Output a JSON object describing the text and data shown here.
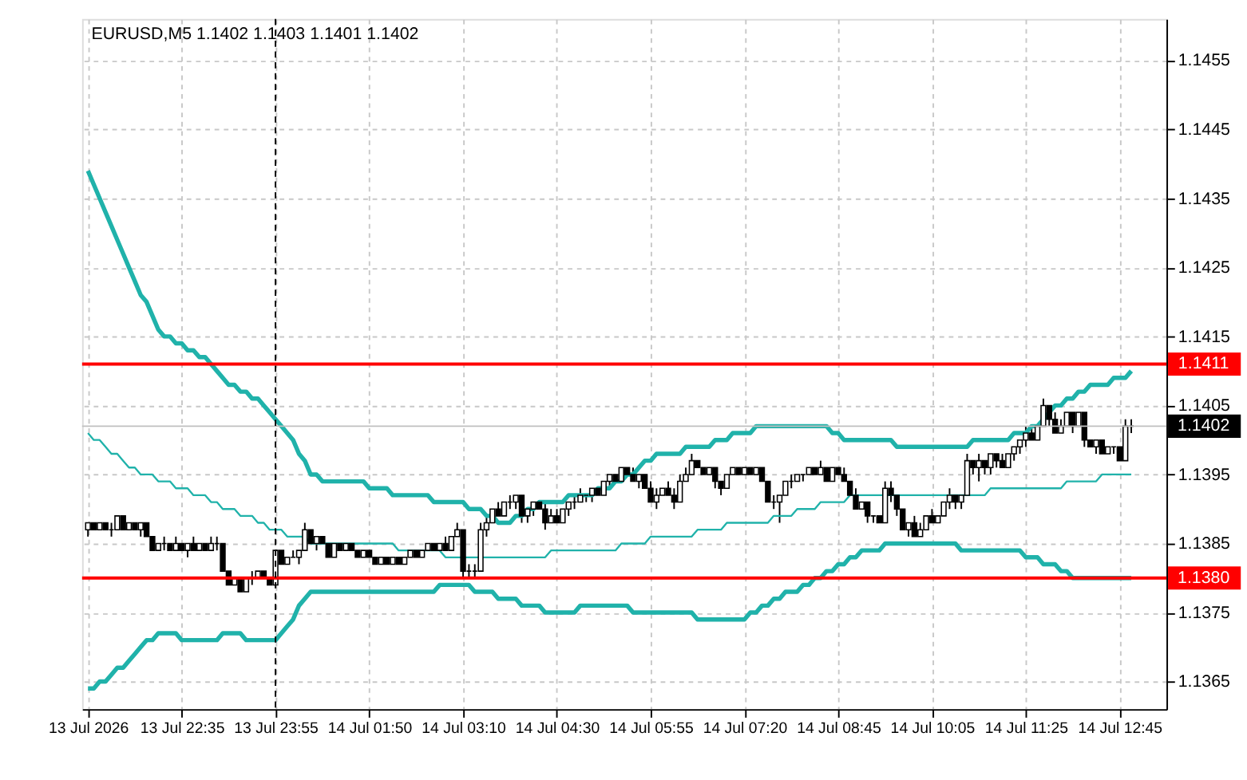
{
  "chart_data": {
    "type": "candlestick",
    "title": "EURUSD,M5  1.1402 1.1403 1.1401 1.1402",
    "categories": [
      "13 Jul 2026",
      null,
      null,
      null,
      null,
      null,
      null,
      null,
      null,
      null,
      null,
      null,
      null,
      null,
      null,
      null,
      "13 Jul 22:35",
      null,
      null,
      null,
      null,
      null,
      null,
      null,
      null,
      null,
      null,
      null,
      null,
      null,
      null,
      null,
      "13 Jul 23:55",
      null,
      null,
      null,
      null,
      null,
      null,
      null,
      null,
      null,
      null,
      null,
      null,
      null,
      null,
      null,
      "14 Jul 01:50",
      null,
      null,
      null,
      null,
      null,
      null,
      null,
      null,
      null,
      null,
      null,
      null,
      null,
      null,
      null,
      "14 Jul 03:10",
      null,
      null,
      null,
      null,
      null,
      null,
      null,
      null,
      null,
      null,
      null,
      null,
      null,
      null,
      null,
      "14 Jul 04:30",
      null,
      null,
      null,
      null,
      null,
      null,
      null,
      null,
      null,
      null,
      null,
      null,
      null,
      null,
      null,
      "14 Jul 05:55",
      null,
      null,
      null,
      null,
      null,
      null,
      null,
      null,
      null,
      null,
      null,
      null,
      null,
      null,
      null,
      "14 Jul 07:20",
      null,
      null,
      null,
      null,
      null,
      null,
      null,
      null,
      null,
      null,
      null,
      null,
      null,
      null,
      null,
      "14 Jul 08:45",
      null,
      null,
      null,
      null,
      null,
      null,
      null,
      null,
      null,
      null,
      null,
      null,
      null,
      null,
      null,
      "14 Jul 10:05",
      null,
      null,
      null,
      null,
      null,
      null,
      null,
      null,
      null,
      null,
      null,
      null,
      null,
      null,
      null,
      "14 Jul 11:25",
      null,
      null,
      null,
      null,
      null,
      null,
      null,
      null,
      null,
      null,
      null,
      null,
      null,
      null,
      null,
      "14 Jul 12:45",
      null,
      null
    ],
    "ohlc": [
      [
        1.1387,
        1.1388,
        1.1386,
        1.1388
      ],
      [
        1.1388,
        1.1388,
        1.1387,
        1.1387
      ],
      [
        1.1387,
        1.1388,
        1.1387,
        1.1388
      ],
      [
        1.1388,
        1.1388,
        1.1387,
        1.1387
      ],
      [
        1.1387,
        1.1388,
        1.1386,
        1.1387
      ],
      [
        1.1387,
        1.1389,
        1.1387,
        1.1389
      ],
      [
        1.1389,
        1.1389,
        1.1387,
        1.1387
      ],
      [
        1.1387,
        1.1388,
        1.1387,
        1.1388
      ],
      [
        1.1388,
        1.1388,
        1.1387,
        1.1387
      ],
      [
        1.1387,
        1.1388,
        1.1386,
        1.1388
      ],
      [
        1.1388,
        1.1388,
        1.1386,
        1.1386
      ],
      [
        1.1386,
        1.1386,
        1.1384,
        1.1384
      ],
      [
        1.1384,
        1.1385,
        1.1384,
        1.1385
      ],
      [
        1.1385,
        1.1386,
        1.1384,
        1.1385
      ],
      [
        1.1385,
        1.1385,
        1.1384,
        1.1384
      ],
      [
        1.1384,
        1.1386,
        1.1384,
        1.1385
      ],
      [
        1.1385,
        1.1385,
        1.1384,
        1.1384
      ],
      [
        1.1384,
        1.1385,
        1.1383,
        1.1385
      ],
      [
        1.1385,
        1.1386,
        1.1384,
        1.1384
      ],
      [
        1.1384,
        1.1385,
        1.1384,
        1.1385
      ],
      [
        1.1385,
        1.1385,
        1.1384,
        1.1384
      ],
      [
        1.1384,
        1.1386,
        1.1384,
        1.1385
      ],
      [
        1.1385,
        1.1386,
        1.1384,
        1.1385
      ],
      [
        1.1385,
        1.1385,
        1.1381,
        1.1381
      ],
      [
        1.1381,
        1.1381,
        1.1379,
        1.1379
      ],
      [
        1.1379,
        1.138,
        1.1379,
        1.138
      ],
      [
        1.138,
        1.138,
        1.1378,
        1.1378
      ],
      [
        1.1378,
        1.138,
        1.1378,
        1.138
      ],
      [
        1.138,
        1.1381,
        1.1379,
        1.138
      ],
      [
        1.138,
        1.1381,
        1.138,
        1.1381
      ],
      [
        1.1381,
        1.1381,
        1.138,
        1.138
      ],
      [
        1.138,
        1.138,
        1.1379,
        1.1379
      ],
      [
        1.1379,
        1.1384,
        1.1379,
        1.1384
      ],
      [
        1.1384,
        1.1384,
        1.1382,
        1.1382
      ],
      [
        1.1382,
        1.1383,
        1.1382,
        1.1383
      ],
      [
        1.1383,
        1.1384,
        1.1383,
        1.1383
      ],
      [
        1.1383,
        1.1384,
        1.1382,
        1.1384
      ],
      [
        1.1384,
        1.1388,
        1.1384,
        1.1387
      ],
      [
        1.1387,
        1.1387,
        1.1385,
        1.1385
      ],
      [
        1.1385,
        1.1386,
        1.1384,
        1.1386
      ],
      [
        1.1386,
        1.1386,
        1.1385,
        1.1385
      ],
      [
        1.1385,
        1.1385,
        1.1383,
        1.1383
      ],
      [
        1.1383,
        1.1385,
        1.1383,
        1.1385
      ],
      [
        1.1385,
        1.1385,
        1.1384,
        1.1384
      ],
      [
        1.1384,
        1.1385,
        1.1384,
        1.1385
      ],
      [
        1.1385,
        1.1385,
        1.1384,
        1.1384
      ],
      [
        1.1384,
        1.1384,
        1.1383,
        1.1383
      ],
      [
        1.1383,
        1.1384,
        1.1383,
        1.1384
      ],
      [
        1.1384,
        1.1384,
        1.1383,
        1.1383
      ],
      [
        1.1383,
        1.1383,
        1.1382,
        1.1382
      ],
      [
        1.1382,
        1.1383,
        1.1382,
        1.1383
      ],
      [
        1.1383,
        1.1383,
        1.1382,
        1.1382
      ],
      [
        1.1382,
        1.1383,
        1.1382,
        1.1383
      ],
      [
        1.1383,
        1.1383,
        1.1382,
        1.1382
      ],
      [
        1.1382,
        1.1383,
        1.1382,
        1.1383
      ],
      [
        1.1383,
        1.1384,
        1.1383,
        1.1384
      ],
      [
        1.1384,
        1.1384,
        1.1383,
        1.1383
      ],
      [
        1.1383,
        1.1384,
        1.1383,
        1.1384
      ],
      [
        1.1384,
        1.1385,
        1.1384,
        1.1385
      ],
      [
        1.1385,
        1.1385,
        1.1384,
        1.1384
      ],
      [
        1.1384,
        1.1385,
        1.1384,
        1.1385
      ],
      [
        1.1385,
        1.1386,
        1.1384,
        1.1384
      ],
      [
        1.1384,
        1.1386,
        1.1384,
        1.1386
      ],
      [
        1.1386,
        1.1388,
        1.1386,
        1.1387
      ],
      [
        1.1387,
        1.1387,
        1.138,
        1.1381
      ],
      [
        1.1381,
        1.1382,
        1.138,
        1.1381
      ],
      [
        1.1381,
        1.1382,
        1.138,
        1.1381
      ],
      [
        1.1381,
        1.1388,
        1.1381,
        1.1387
      ],
      [
        1.1387,
        1.1389,
        1.1386,
        1.1388
      ],
      [
        1.1388,
        1.139,
        1.1388,
        1.139
      ],
      [
        1.139,
        1.1391,
        1.1389,
        1.1389
      ],
      [
        1.1389,
        1.1391,
        1.1389,
        1.1391
      ],
      [
        1.1391,
        1.1392,
        1.139,
        1.1391
      ],
      [
        1.1391,
        1.1392,
        1.139,
        1.1392
      ],
      [
        1.1392,
        1.1392,
        1.1388,
        1.1389
      ],
      [
        1.1389,
        1.139,
        1.1388,
        1.139
      ],
      [
        1.139,
        1.1391,
        1.1389,
        1.1391
      ],
      [
        1.1391,
        1.1391,
        1.139,
        1.139
      ],
      [
        1.139,
        1.1391,
        1.1387,
        1.1388
      ],
      [
        1.1388,
        1.139,
        1.1388,
        1.1389
      ],
      [
        1.1389,
        1.139,
        1.1388,
        1.1388
      ],
      [
        1.1388,
        1.139,
        1.1388,
        1.139
      ],
      [
        1.139,
        1.1391,
        1.1389,
        1.1391
      ],
      [
        1.1391,
        1.1392,
        1.139,
        1.1391
      ],
      [
        1.1391,
        1.1393,
        1.1391,
        1.1392
      ],
      [
        1.1392,
        1.1392,
        1.1391,
        1.1392
      ],
      [
        1.1392,
        1.1393,
        1.1391,
        1.1393
      ],
      [
        1.1393,
        1.1393,
        1.1392,
        1.1392
      ],
      [
        1.1392,
        1.1394,
        1.1392,
        1.1394
      ],
      [
        1.1394,
        1.1395,
        1.1393,
        1.1395
      ],
      [
        1.1395,
        1.1395,
        1.1394,
        1.1394
      ],
      [
        1.1394,
        1.1396,
        1.1394,
        1.1396
      ],
      [
        1.1396,
        1.1396,
        1.1395,
        1.1395
      ],
      [
        1.1395,
        1.1396,
        1.1394,
        1.1394
      ],
      [
        1.1394,
        1.1395,
        1.1393,
        1.1395
      ],
      [
        1.1395,
        1.1395,
        1.1393,
        1.1393
      ],
      [
        1.1393,
        1.1394,
        1.1391,
        1.1391
      ],
      [
        1.1391,
        1.1393,
        1.139,
        1.1392
      ],
      [
        1.1392,
        1.1393,
        1.1392,
        1.1393
      ],
      [
        1.1393,
        1.1394,
        1.1392,
        1.1392
      ],
      [
        1.1392,
        1.1393,
        1.139,
        1.1391
      ],
      [
        1.1391,
        1.1395,
        1.1391,
        1.1394
      ],
      [
        1.1394,
        1.1396,
        1.1394,
        1.1395
      ],
      [
        1.1395,
        1.1398,
        1.1395,
        1.1397
      ],
      [
        1.1397,
        1.1397,
        1.1396,
        1.1396
      ],
      [
        1.1396,
        1.1396,
        1.1395,
        1.1395
      ],
      [
        1.1395,
        1.1396,
        1.1395,
        1.1396
      ],
      [
        1.1396,
        1.1396,
        1.1393,
        1.1394
      ],
      [
        1.1394,
        1.1394,
        1.1392,
        1.1393
      ],
      [
        1.1393,
        1.1395,
        1.1393,
        1.1395
      ],
      [
        1.1395,
        1.1396,
        1.1395,
        1.1396
      ],
      [
        1.1396,
        1.1396,
        1.1395,
        1.1395
      ],
      [
        1.1395,
        1.1396,
        1.1395,
        1.1396
      ],
      [
        1.1396,
        1.1396,
        1.1395,
        1.1395
      ],
      [
        1.1395,
        1.1396,
        1.1395,
        1.1396
      ],
      [
        1.1396,
        1.1396,
        1.1394,
        1.1394
      ],
      [
        1.1394,
        1.1394,
        1.1391,
        1.1391
      ],
      [
        1.1391,
        1.1392,
        1.139,
        1.1391
      ],
      [
        1.1391,
        1.1392,
        1.1388,
        1.1392
      ],
      [
        1.1392,
        1.1394,
        1.1392,
        1.1394
      ],
      [
        1.1394,
        1.1395,
        1.1393,
        1.1394
      ],
      [
        1.1394,
        1.1395,
        1.1394,
        1.1395
      ],
      [
        1.1395,
        1.1395,
        1.1394,
        1.1395
      ],
      [
        1.1395,
        1.1396,
        1.1395,
        1.1396
      ],
      [
        1.1396,
        1.1396,
        1.1395,
        1.1395
      ],
      [
        1.1395,
        1.1397,
        1.1395,
        1.1396
      ],
      [
        1.1396,
        1.1396,
        1.1394,
        1.1394
      ],
      [
        1.1394,
        1.1396,
        1.1394,
        1.1396
      ],
      [
        1.1396,
        1.1396,
        1.1395,
        1.1395
      ],
      [
        1.1395,
        1.1396,
        1.1394,
        1.1394
      ],
      [
        1.1394,
        1.1394,
        1.1392,
        1.1392
      ],
      [
        1.1392,
        1.1393,
        1.139,
        1.139
      ],
      [
        1.139,
        1.1391,
        1.139,
        1.1391
      ],
      [
        1.1391,
        1.1391,
        1.1388,
        1.1389
      ],
      [
        1.1389,
        1.1389,
        1.1388,
        1.1389
      ],
      [
        1.1389,
        1.1389,
        1.1388,
        1.1388
      ],
      [
        1.1388,
        1.1394,
        1.1388,
        1.1393
      ],
      [
        1.1393,
        1.1394,
        1.1391,
        1.1392
      ],
      [
        1.1392,
        1.1392,
        1.1389,
        1.139
      ],
      [
        1.139,
        1.139,
        1.1387,
        1.1387
      ],
      [
        1.1387,
        1.1388,
        1.1386,
        1.1388
      ],
      [
        1.1388,
        1.1389,
        1.1386,
        1.1386
      ],
      [
        1.1386,
        1.1388,
        1.1386,
        1.1387
      ],
      [
        1.1387,
        1.1389,
        1.1387,
        1.1389
      ],
      [
        1.1389,
        1.139,
        1.1388,
        1.1388
      ],
      [
        1.1388,
        1.1389,
        1.1388,
        1.1389
      ],
      [
        1.1389,
        1.1391,
        1.1389,
        1.1391
      ],
      [
        1.1391,
        1.1393,
        1.139,
        1.1392
      ],
      [
        1.1392,
        1.1392,
        1.139,
        1.1391
      ],
      [
        1.1391,
        1.1392,
        1.139,
        1.1392
      ],
      [
        1.1392,
        1.1398,
        1.1392,
        1.1397
      ],
      [
        1.1397,
        1.1397,
        1.1395,
        1.1396
      ],
      [
        1.1396,
        1.1398,
        1.1394,
        1.1397
      ],
      [
        1.1397,
        1.1397,
        1.1395,
        1.1396
      ],
      [
        1.1396,
        1.1398,
        1.1395,
        1.1398
      ],
      [
        1.1398,
        1.1398,
        1.1396,
        1.1397
      ],
      [
        1.1397,
        1.1398,
        1.1396,
        1.1396
      ],
      [
        1.1396,
        1.1398,
        1.1396,
        1.1398
      ],
      [
        1.1398,
        1.1399,
        1.1397,
        1.1399
      ],
      [
        1.1399,
        1.14,
        1.1398,
        1.14
      ],
      [
        1.14,
        1.1402,
        1.1399,
        1.1401
      ],
      [
        1.1401,
        1.1402,
        1.14,
        1.14
      ],
      [
        1.14,
        1.1402,
        1.14,
        1.1402
      ],
      [
        1.1402,
        1.1406,
        1.1402,
        1.1405
      ],
      [
        1.1405,
        1.1405,
        1.1402,
        1.1403
      ],
      [
        1.1403,
        1.1404,
        1.1401,
        1.1401
      ],
      [
        1.1401,
        1.1403,
        1.1401,
        1.1402
      ],
      [
        1.1402,
        1.1404,
        1.1402,
        1.1404
      ],
      [
        1.1404,
        1.1404,
        1.1401,
        1.1402
      ],
      [
        1.1402,
        1.1404,
        1.1402,
        1.1404
      ],
      [
        1.1404,
        1.1404,
        1.1399,
        1.14
      ],
      [
        1.14,
        1.14,
        1.1399,
        1.1399
      ],
      [
        1.1399,
        1.14,
        1.1398,
        1.14
      ],
      [
        1.14,
        1.14,
        1.1398,
        1.1398
      ],
      [
        1.1398,
        1.1399,
        1.1398,
        1.1399
      ],
      [
        1.1399,
        1.1399,
        1.1398,
        1.1399
      ],
      [
        1.1399,
        1.1399,
        1.1397,
        1.1397
      ],
      [
        1.1397,
        1.1403,
        1.1397,
        1.1402
      ],
      [
        1.1402,
        1.1403,
        1.1401,
        1.1402
      ]
    ],
    "series": [
      {
        "type": "line",
        "color": "#20b2aa",
        "values": [
          1.1439,
          1.1437,
          1.1435,
          1.1433,
          1.1431,
          1.1429,
          1.1427,
          1.1425,
          1.1423,
          1.1421,
          1.142,
          1.1418,
          1.1416,
          1.1415,
          1.1415,
          1.1414,
          1.1414,
          1.1413,
          1.1413,
          1.1412,
          1.1412,
          1.1411,
          1.141,
          1.1409,
          1.1408,
          1.1408,
          1.1407,
          1.1407,
          1.1406,
          1.1406,
          1.1405,
          1.1404,
          1.1403,
          1.1402,
          1.1401,
          1.14,
          1.1398,
          1.1397,
          1.1395,
          1.1395,
          1.1394,
          1.1394,
          1.1394,
          1.1394,
          1.1394,
          1.1394,
          1.1394,
          1.1394,
          1.1393,
          1.1393,
          1.1393,
          1.1393,
          1.1392,
          1.1392,
          1.1392,
          1.1392,
          1.1392,
          1.1392,
          1.1392,
          1.1391,
          1.1391,
          1.1391,
          1.1391,
          1.1391,
          1.1391,
          1.139,
          1.139,
          1.139,
          1.1389,
          1.1389,
          1.1388,
          1.1388,
          1.1388,
          1.1389,
          1.1389,
          1.139,
          1.139,
          1.1391,
          1.1391,
          1.1391,
          1.1391,
          1.1391,
          1.1392,
          1.1392,
          1.1392,
          1.1392,
          1.1392,
          1.1393,
          1.1393,
          1.1393,
          1.1394,
          1.1394,
          1.1395,
          1.1395,
          1.1396,
          1.1397,
          1.1397,
          1.1398,
          1.1398,
          1.1398,
          1.1398,
          1.1398,
          1.1399,
          1.1399,
          1.1399,
          1.1399,
          1.1399,
          1.14,
          1.14,
          1.14,
          1.1401,
          1.1401,
          1.1401,
          1.1401,
          1.1402,
          1.1402,
          1.1402,
          1.1402,
          1.1402,
          1.1402,
          1.1402,
          1.1402,
          1.1402,
          1.1402,
          1.1402,
          1.1402,
          1.1402,
          1.1401,
          1.1401,
          1.14,
          1.14,
          1.14,
          1.14,
          1.14,
          1.14,
          1.14,
          1.14,
          1.14,
          1.1399,
          1.1399,
          1.1399,
          1.1399,
          1.1399,
          1.1399,
          1.1399,
          1.1399,
          1.1399,
          1.1399,
          1.1399,
          1.1399,
          1.1399,
          1.14,
          1.14,
          1.14,
          1.14,
          1.14,
          1.14,
          1.14,
          1.1401,
          1.1401,
          1.1401,
          1.1402,
          1.1402,
          1.1403,
          1.1404,
          1.1405,
          1.1405,
          1.1406,
          1.1406,
          1.1407,
          1.1407,
          1.1408,
          1.1408,
          1.1408,
          1.1408,
          1.1409,
          1.1409,
          1.1409,
          1.141
        ]
      },
      {
        "type": "line",
        "color": "#20b2aa",
        "values": [
          1.1401,
          1.14,
          1.14,
          1.1399,
          1.1398,
          1.1398,
          1.1397,
          1.1396,
          1.1396,
          1.1395,
          1.1395,
          1.1395,
          1.1394,
          1.1394,
          1.1394,
          1.1393,
          1.1393,
          1.1393,
          1.1392,
          1.1392,
          1.1392,
          1.1391,
          1.1391,
          1.139,
          1.139,
          1.139,
          1.1389,
          1.1389,
          1.1389,
          1.1388,
          1.1388,
          1.1387,
          1.1387,
          1.1387,
          1.1386,
          1.1386,
          1.1386,
          1.1386,
          1.1385,
          1.1385,
          1.1385,
          1.1385,
          1.1385,
          1.1385,
          1.1385,
          1.1385,
          1.1385,
          1.1385,
          1.1385,
          1.1385,
          1.1385,
          1.1385,
          1.1385,
          1.1384,
          1.1384,
          1.1384,
          1.1384,
          1.1384,
          1.1384,
          1.1384,
          1.1384,
          1.1383,
          1.1383,
          1.1383,
          1.1383,
          1.1383,
          1.1383,
          1.1383,
          1.1383,
          1.1383,
          1.1383,
          1.1383,
          1.1383,
          1.1383,
          1.1383,
          1.1383,
          1.1383,
          1.1383,
          1.1383,
          1.1384,
          1.1384,
          1.1384,
          1.1384,
          1.1384,
          1.1384,
          1.1384,
          1.1384,
          1.1384,
          1.1384,
          1.1384,
          1.1384,
          1.1385,
          1.1385,
          1.1385,
          1.1385,
          1.1385,
          1.1386,
          1.1386,
          1.1386,
          1.1386,
          1.1386,
          1.1386,
          1.1386,
          1.1386,
          1.1387,
          1.1387,
          1.1387,
          1.1387,
          1.1387,
          1.1388,
          1.1388,
          1.1388,
          1.1388,
          1.1388,
          1.1388,
          1.1388,
          1.1388,
          1.1389,
          1.1389,
          1.1389,
          1.1389,
          1.139,
          1.139,
          1.139,
          1.139,
          1.1391,
          1.1391,
          1.1391,
          1.1391,
          1.1391,
          1.1392,
          1.1392,
          1.1392,
          1.1392,
          1.1392,
          1.1392,
          1.1392,
          1.1392,
          1.1392,
          1.1392,
          1.1392,
          1.1392,
          1.1392,
          1.1392,
          1.1392,
          1.1392,
          1.1392,
          1.1392,
          1.1392,
          1.1392,
          1.1392,
          1.1392,
          1.1392,
          1.1392,
          1.1393,
          1.1393,
          1.1393,
          1.1393,
          1.1393,
          1.1393,
          1.1393,
          1.1393,
          1.1393,
          1.1393,
          1.1393,
          1.1393,
          1.1393,
          1.1394,
          1.1394,
          1.1394,
          1.1394,
          1.1394,
          1.1394,
          1.1395,
          1.1395,
          1.1395,
          1.1395,
          1.1395,
          1.1395
        ]
      },
      {
        "type": "line",
        "color": "#20b2aa",
        "values": [
          1.1364,
          1.1364,
          1.1365,
          1.1365,
          1.1366,
          1.1367,
          1.1367,
          1.1368,
          1.1369,
          1.137,
          1.1371,
          1.1371,
          1.1372,
          1.1372,
          1.1372,
          1.1372,
          1.1371,
          1.1371,
          1.1371,
          1.1371,
          1.1371,
          1.1371,
          1.1371,
          1.1372,
          1.1372,
          1.1372,
          1.1372,
          1.1371,
          1.1371,
          1.1371,
          1.1371,
          1.1371,
          1.1371,
          1.1372,
          1.1373,
          1.1374,
          1.1376,
          1.1377,
          1.1378,
          1.1378,
          1.1378,
          1.1378,
          1.1378,
          1.1378,
          1.1378,
          1.1378,
          1.1378,
          1.1378,
          1.1378,
          1.1378,
          1.1378,
          1.1378,
          1.1378,
          1.1378,
          1.1378,
          1.1378,
          1.1378,
          1.1378,
          1.1378,
          1.1378,
          1.1379,
          1.1379,
          1.1379,
          1.1379,
          1.1379,
          1.1379,
          1.1378,
          1.1378,
          1.1378,
          1.1378,
          1.1377,
          1.1377,
          1.1377,
          1.1377,
          1.1376,
          1.1376,
          1.1376,
          1.1376,
          1.1375,
          1.1375,
          1.1375,
          1.1375,
          1.1375,
          1.1375,
          1.1376,
          1.1376,
          1.1376,
          1.1376,
          1.1376,
          1.1376,
          1.1376,
          1.1376,
          1.1376,
          1.1375,
          1.1375,
          1.1375,
          1.1375,
          1.1375,
          1.1375,
          1.1375,
          1.1375,
          1.1375,
          1.1375,
          1.1375,
          1.1374,
          1.1374,
          1.1374,
          1.1374,
          1.1374,
          1.1374,
          1.1374,
          1.1374,
          1.1374,
          1.1375,
          1.1375,
          1.1376,
          1.1376,
          1.1377,
          1.1377,
          1.1378,
          1.1378,
          1.1378,
          1.1379,
          1.1379,
          1.138,
          1.138,
          1.1381,
          1.1381,
          1.1382,
          1.1382,
          1.1383,
          1.1383,
          1.1384,
          1.1384,
          1.1384,
          1.1384,
          1.1385,
          1.1385,
          1.1385,
          1.1385,
          1.1385,
          1.1385,
          1.1385,
          1.1385,
          1.1385,
          1.1385,
          1.1385,
          1.1385,
          1.1385,
          1.1384,
          1.1384,
          1.1384,
          1.1384,
          1.1384,
          1.1384,
          1.1384,
          1.1384,
          1.1384,
          1.1384,
          1.1384,
          1.1383,
          1.1383,
          1.1383,
          1.1382,
          1.1382,
          1.1382,
          1.1381,
          1.1381,
          1.138,
          1.138,
          1.138,
          1.138,
          1.138,
          1.138,
          1.138,
          1.138,
          1.138,
          1.138,
          1.138
        ]
      }
    ],
    "ylim": [
      1.1361,
      1.1461
    ],
    "yticks": [
      1.1365,
      1.1375,
      1.1385,
      1.1395,
      1.1405,
      1.1415,
      1.1425,
      1.1435,
      1.1445,
      1.1455
    ],
    "ref_lines": [
      {
        "axis": "y",
        "value": 1.1411,
        "label": "1.1411",
        "color": "#ff0000"
      },
      {
        "axis": "y",
        "value": 1.138,
        "label": "1.1380",
        "color": "#ff0000"
      },
      {
        "axis": "y",
        "value": 1.1402,
        "label": "1.1402",
        "color": "#c0c0c0"
      },
      {
        "axis": "x",
        "value": "13 Jul 23:55",
        "label": null,
        "color": "#000000",
        "line_style": "dashed"
      }
    ],
    "grid": true
  }
}
